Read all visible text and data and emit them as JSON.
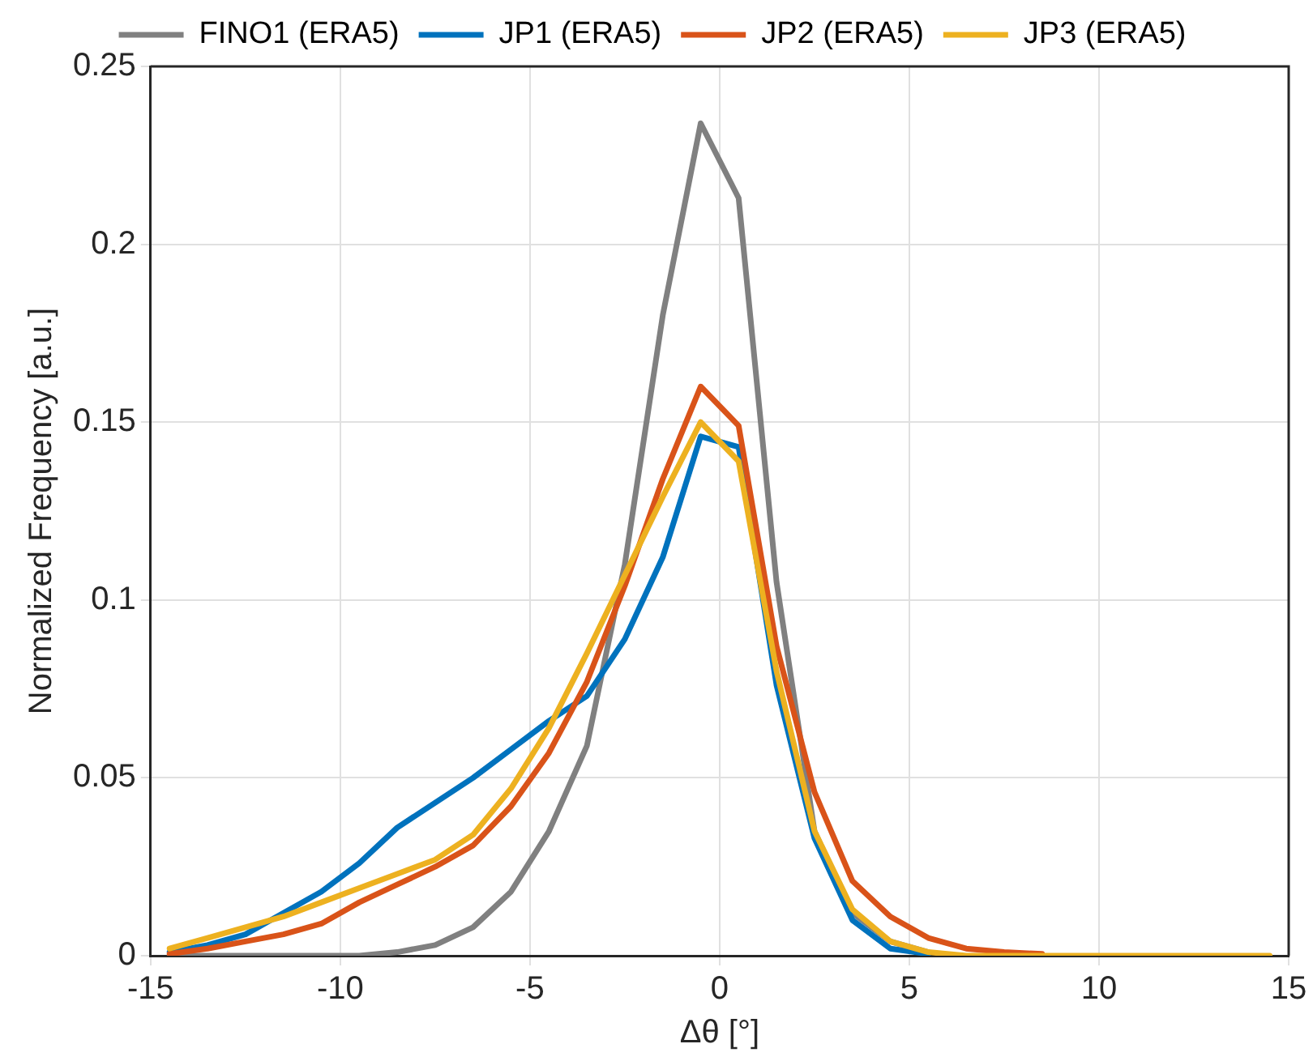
{
  "chart_data": {
    "type": "line",
    "xlabel": "Δθ [°]",
    "ylabel": "Normalized Frequency [a.u.]",
    "x": [
      -14.5,
      -13.5,
      -12.5,
      -11.5,
      -10.5,
      -9.5,
      -8.5,
      -7.5,
      -6.5,
      -5.5,
      -4.5,
      -3.5,
      -2.5,
      -1.5,
      -0.5,
      0.5,
      1.5,
      2.5,
      3.5,
      4.5,
      5.5,
      6.5,
      7.5,
      8.5,
      9.5,
      10.5,
      11.5,
      12.5,
      13.5,
      14.5
    ],
    "series": [
      {
        "name": "FINO1 (ERA5)",
        "color": "#808080",
        "values": [
          0,
          0,
          0,
          0,
          0,
          0,
          0.001,
          0.003,
          0.008,
          0.018,
          0.035,
          0.059,
          0.11,
          0.18,
          0.234,
          0.213,
          0.105,
          0.035,
          0.012,
          0.004,
          0.001,
          null,
          null,
          null,
          null,
          null,
          null,
          null,
          null,
          null
        ]
      },
      {
        "name": "JP1 (ERA5)",
        "color": "#0072bd",
        "values": [
          0.001,
          0.003,
          0.006,
          0.012,
          0.018,
          0.026,
          0.036,
          0.043,
          0.05,
          0.058,
          0.066,
          0.073,
          0.089,
          0.112,
          0.146,
          0.143,
          0.076,
          0.033,
          0.01,
          0.002,
          0.0005,
          null,
          null,
          null,
          null,
          null,
          null,
          null,
          null,
          null
        ]
      },
      {
        "name": "JP2 (ERA5)",
        "color": "#d95319",
        "values": [
          0.0005,
          0.002,
          0.004,
          0.006,
          0.009,
          0.015,
          0.02,
          0.025,
          0.031,
          0.042,
          0.057,
          0.077,
          0.104,
          0.134,
          0.16,
          0.149,
          0.087,
          0.046,
          0.021,
          0.011,
          0.005,
          0.002,
          0.001,
          0.0005,
          null,
          null,
          null,
          null,
          null,
          null
        ]
      },
      {
        "name": "JP3 (ERA5)",
        "color": "#edb120",
        "values": [
          0.002,
          0.005,
          0.008,
          0.011,
          0.015,
          0.019,
          0.023,
          0.027,
          0.034,
          0.047,
          0.064,
          0.085,
          0.107,
          0.129,
          0.15,
          0.139,
          0.08,
          0.035,
          0.013,
          0.004,
          0.001,
          0,
          0,
          0,
          0,
          0,
          0,
          0,
          0,
          0
        ]
      }
    ],
    "xlim": [
      -15,
      15
    ],
    "xticks": [
      -15,
      -10,
      -5,
      0,
      5,
      10,
      15
    ],
    "ylim": [
      0,
      0.25
    ],
    "yticks": [
      0,
      0.05,
      0.1,
      0.15,
      0.2,
      0.25
    ],
    "grid": true,
    "legend": "top",
    "marker": "none",
    "line_style": "solid"
  }
}
